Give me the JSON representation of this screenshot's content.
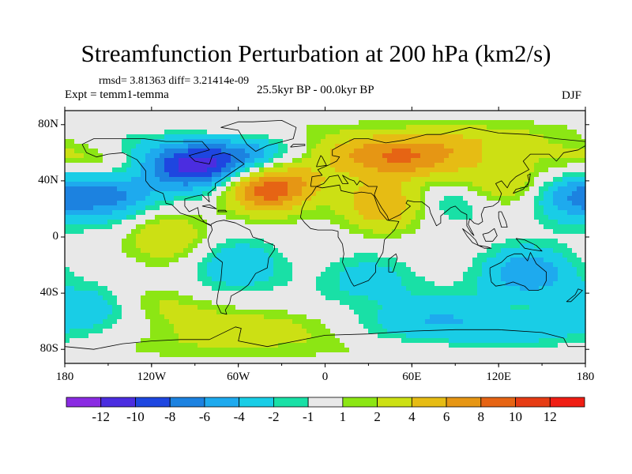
{
  "chart_data": {
    "type": "heatmap",
    "title": "Streamfunction Perturbation at 200 hPa (km2/s)",
    "stats": "rmsd= 3.81363 diff= 3.21414e-09",
    "experiment": "Expt = temm1-temma",
    "period": "25.5kyr BP - 00.0kyr BP",
    "season": "DJF",
    "x_axis": {
      "range": [
        -180,
        180
      ],
      "ticks": [
        -180,
        -120,
        -60,
        0,
        60,
        120,
        180
      ],
      "tick_labels": [
        "180",
        "120W",
        "60W",
        "0",
        "60E",
        "120E",
        "180"
      ]
    },
    "y_axis": {
      "range": [
        -90,
        90
      ],
      "ticks": [
        80,
        40,
        0,
        -40,
        -80
      ],
      "tick_labels": [
        "80N",
        "40N",
        "0",
        "40S",
        "80S"
      ]
    },
    "colorbar": {
      "levels": [
        -12,
        -10,
        -8,
        -6,
        -4,
        -2,
        -1,
        1,
        2,
        4,
        6,
        8,
        10,
        12
      ],
      "tick_labels": [
        "-12",
        "-10",
        "-8",
        "-6",
        "-4",
        "-2",
        "-1",
        "1",
        "2",
        "4",
        "6",
        "8",
        "10",
        "12"
      ],
      "colors": [
        "#8a2be2",
        "#4b2de0",
        "#1e46e0",
        "#1c82e0",
        "#1eaaee",
        "#19cde6",
        "#19e0a6",
        "#e8e8e8",
        "#8ce614",
        "#cce014",
        "#e6bc14",
        "#e69614",
        "#e66414",
        "#e63c14",
        "#f01e14"
      ]
    },
    "anomalies": [
      {
        "lon": -85,
        "lat": 52,
        "value": -13
      },
      {
        "lon": -145,
        "lat": 30,
        "value": -6
      },
      {
        "lon": -150,
        "lat": 55,
        "value": 4
      },
      {
        "lon": -40,
        "lat": 35,
        "value": 10
      },
      {
        "lon": 50,
        "lat": 58,
        "value": 8
      },
      {
        "lon": 40,
        "lat": 22,
        "value": 6
      },
      {
        "lon": 120,
        "lat": 40,
        "value": 5
      },
      {
        "lon": 175,
        "lat": 28,
        "value": -6
      },
      {
        "lon": 90,
        "lat": 28,
        "value": -3
      },
      {
        "lon": -110,
        "lat": 0,
        "value": 4
      },
      {
        "lon": -60,
        "lat": -20,
        "value": -4
      },
      {
        "lon": 30,
        "lat": -30,
        "value": -3
      },
      {
        "lon": 140,
        "lat": -25,
        "value": -6
      },
      {
        "lon": -160,
        "lat": -55,
        "value": -5
      },
      {
        "lon": -120,
        "lat": -55,
        "value": 4
      },
      {
        "lon": -40,
        "lat": -70,
        "value": 3
      },
      {
        "lon": 80,
        "lat": -60,
        "value": -4
      }
    ]
  }
}
